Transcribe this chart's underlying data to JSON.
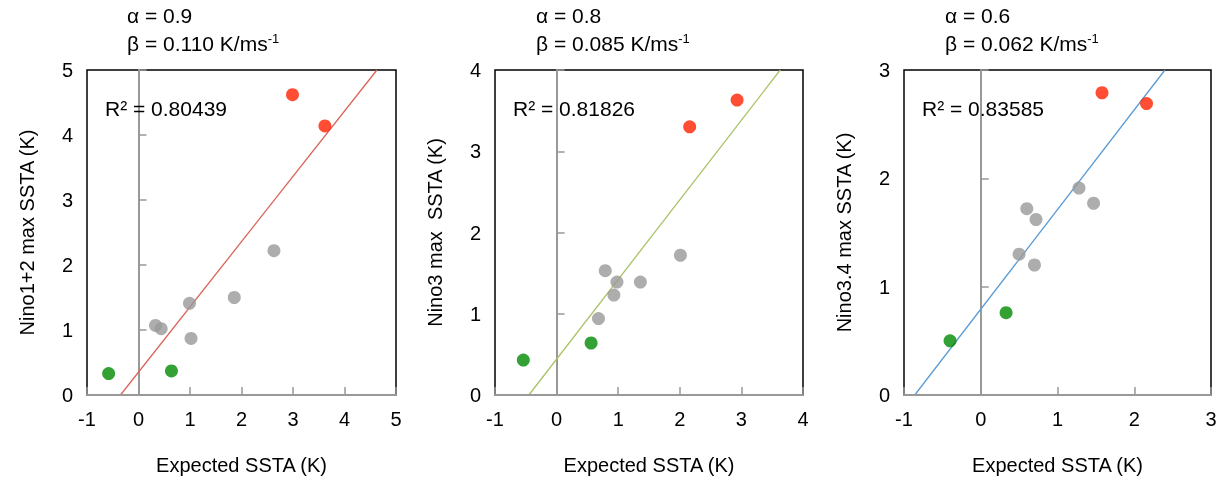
{
  "chart_data": [
    {
      "type": "scatter",
      "title": "α = 0.9",
      "subtitle": "β = 0.110 K/ms$^{-1}$",
      "xlabel": "Expected SSTA (K)",
      "ylabel": "Nino1+2 max SSTA (K)",
      "annotations": [
        "R² = 0.80439"
      ],
      "xlim": [
        -1,
        5
      ],
      "xticks": [
        -1,
        0,
        1,
        2,
        3,
        4,
        5
      ],
      "ylim": [
        0,
        5
      ],
      "yticks": [
        0,
        1,
        2,
        3,
        4,
        5
      ],
      "series": [
        {
          "type": "line",
          "color": "#d9645a",
          "marker": "none",
          "x": [
            -0.35,
            4.63
          ],
          "values": [
            0,
            5
          ]
        },
        {
          "color": "#ff2200",
          "marker": "circle",
          "x": [
            2.99,
            3.62
          ],
          "values": [
            4.62,
            4.14
          ]
        },
        {
          "color": "#999999",
          "marker": "circle",
          "x": [
            2.63,
            1.86,
            0.99,
            0.33,
            0.44,
            1.02
          ],
          "values": [
            2.22,
            1.5,
            1.41,
            1.07,
            1.02,
            0.87
          ]
        },
        {
          "color": "#008a00",
          "marker": "circle",
          "x": [
            -0.58,
            0.64
          ],
          "values": [
            0.33,
            0.37
          ]
        }
      ]
    },
    {
      "type": "scatter",
      "title": "α = 0.8",
      "subtitle": "β = 0.085 K/ms$^{-1}$",
      "xlabel": "Expected SSTA (K)",
      "ylabel": "Nino3 max  SSTA (K)",
      "annotations": [
        "R² = 0.81826"
      ],
      "xlim": [
        -1,
        4
      ],
      "xticks": [
        -1,
        0,
        1,
        2,
        3,
        4
      ],
      "ylim": [
        0,
        4
      ],
      "yticks": [
        0,
        1,
        2,
        3,
        4
      ],
      "series": [
        {
          "type": "line",
          "color": "#a9c266",
          "marker": "none",
          "x": [
            -0.45,
            3.63
          ],
          "values": [
            0,
            4
          ]
        },
        {
          "color": "#ff2200",
          "marker": "circle",
          "x": [
            2.16,
            2.93
          ],
          "values": [
            3.3,
            3.63
          ]
        },
        {
          "color": "#999999",
          "marker": "circle",
          "x": [
            2.01,
            0.79,
            0.98,
            1.36,
            0.93,
            0.68
          ],
          "values": [
            1.72,
            1.53,
            1.39,
            1.39,
            1.23,
            0.94
          ]
        },
        {
          "color": "#008a00",
          "marker": "circle",
          "x": [
            -0.54,
            0.56
          ],
          "values": [
            0.43,
            0.64
          ]
        }
      ]
    },
    {
      "type": "scatter",
      "title": "α = 0.6",
      "subtitle": "β = 0.062 K/ms$^{-1}$",
      "xlabel": "Expected SSTA (K)",
      "ylabel": "Nino3.4 max SSTA (K)",
      "annotations": [
        "R² = 0.83585"
      ],
      "xlim": [
        -1,
        3
      ],
      "xticks": [
        -1,
        0,
        1,
        2,
        3
      ],
      "ylim": [
        0,
        3
      ],
      "yticks": [
        0,
        1,
        2,
        3
      ],
      "series": [
        {
          "type": "line",
          "color": "#5b9bd5",
          "marker": "none",
          "x": [
            -0.86,
            2.4
          ],
          "values": [
            0,
            3
          ]
        },
        {
          "color": "#ff2200",
          "marker": "circle",
          "x": [
            1.58,
            2.16
          ],
          "values": [
            2.79,
            2.69
          ]
        },
        {
          "color": "#999999",
          "marker": "circle",
          "x": [
            1.28,
            1.47,
            0.6,
            0.72,
            0.5,
            0.7
          ],
          "values": [
            1.91,
            1.77,
            1.72,
            1.62,
            1.3,
            1.2
          ]
        },
        {
          "color": "#008a00",
          "marker": "circle",
          "x": [
            -0.4,
            0.33
          ],
          "values": [
            0.5,
            0.76
          ]
        }
      ]
    }
  ]
}
